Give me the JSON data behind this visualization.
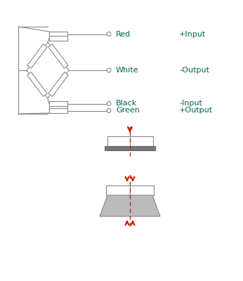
{
  "bg_color": "#ffffff",
  "wire_color": "#888888",
  "text_color": "#006655",
  "arrow_color": "#cc2200",
  "wire_labels": [
    "Red",
    "White",
    "Black",
    "Green"
  ],
  "wire_descriptions": [
    "+Input",
    "-Output",
    "-Input",
    "+Output"
  ],
  "load_cell_fill": "#bbbbbb",
  "load_cell_dark": "#777777",
  "figw": 3.46,
  "figh": 4.0,
  "dpi": 100
}
